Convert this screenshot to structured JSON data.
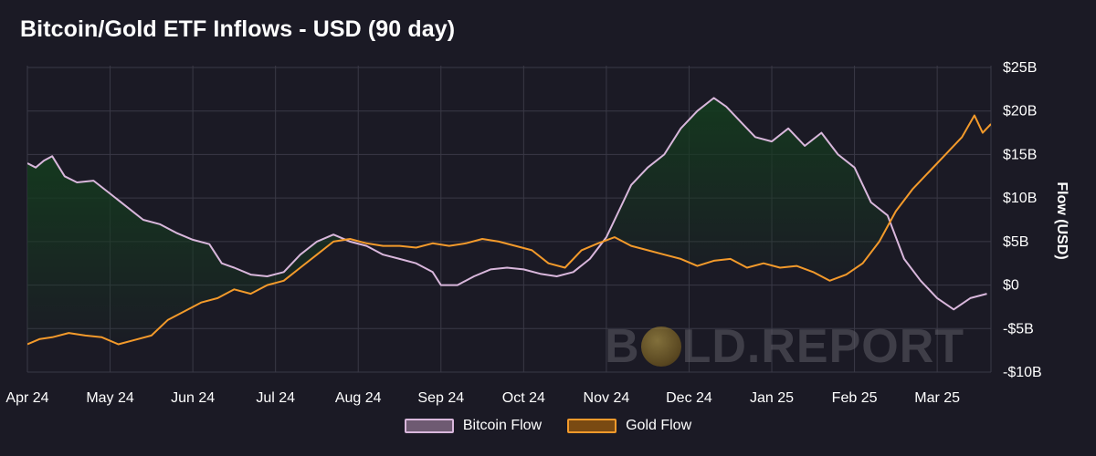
{
  "chart_data": {
    "type": "line",
    "title": "Bitcoin/Gold ETF Inflows - USD (90 day)",
    "ylabel": "Flow (USD)",
    "ylim": [
      -10,
      25
    ],
    "yticks": [
      25,
      20,
      15,
      10,
      5,
      0,
      -5,
      -10
    ],
    "ytick_labels": [
      "$25B",
      "$20B",
      "$15B",
      "$10B",
      "$5B",
      "$0",
      "-$5B",
      "-$10B"
    ],
    "xlim": [
      0,
      11.65
    ],
    "xticks": [
      0,
      1,
      2,
      3,
      4,
      5,
      6,
      7,
      8,
      9,
      10,
      11
    ],
    "xtick_labels": [
      "Apr 24",
      "May 24",
      "Jun 24",
      "Jul 24",
      "Aug 24",
      "Sep 24",
      "Oct 24",
      "Nov 24",
      "Dec 24",
      "Jan 25",
      "Feb 25",
      "Mar 25"
    ],
    "grid": true,
    "legend_position": "bottom-center",
    "series": [
      {
        "name": "Bitcoin Flow",
        "color": "#d9b7dc",
        "x": [
          0,
          0.1,
          0.2,
          0.3,
          0.45,
          0.6,
          0.8,
          1.0,
          1.2,
          1.4,
          1.6,
          1.8,
          2.0,
          2.2,
          2.35,
          2.5,
          2.7,
          2.9,
          3.1,
          3.3,
          3.5,
          3.7,
          3.9,
          4.1,
          4.3,
          4.5,
          4.7,
          4.9,
          5.0,
          5.2,
          5.4,
          5.6,
          5.8,
          6.0,
          6.2,
          6.4,
          6.6,
          6.8,
          7.0,
          7.15,
          7.3,
          7.5,
          7.7,
          7.9,
          8.1,
          8.3,
          8.45,
          8.6,
          8.8,
          9.0,
          9.2,
          9.4,
          9.6,
          9.8,
          10.0,
          10.2,
          10.4,
          10.6,
          10.8,
          11.0,
          11.2,
          11.4,
          11.6
        ],
        "values": [
          14.0,
          13.5,
          14.3,
          14.8,
          12.5,
          11.8,
          12.0,
          10.5,
          9.0,
          7.5,
          7.0,
          6.0,
          5.2,
          4.7,
          2.5,
          2.0,
          1.2,
          1.0,
          1.5,
          3.5,
          5.0,
          5.8,
          5.0,
          4.5,
          3.5,
          3.0,
          2.5,
          1.5,
          0.0,
          0.0,
          1.0,
          1.8,
          2.0,
          1.8,
          1.3,
          1.0,
          1.5,
          3.0,
          5.5,
          8.5,
          11.5,
          13.5,
          15.0,
          18.0,
          20.0,
          21.5,
          20.5,
          19.0,
          17.0,
          16.5,
          18.0,
          16.0,
          17.5,
          15.0,
          13.5,
          9.5,
          8.0,
          3.0,
          0.5,
          -1.5,
          -2.8,
          -1.5,
          -1.0
        ]
      },
      {
        "name": "Gold Flow",
        "color": "#f39a2b",
        "x": [
          0,
          0.15,
          0.3,
          0.5,
          0.7,
          0.9,
          1.1,
          1.3,
          1.5,
          1.7,
          1.9,
          2.1,
          2.3,
          2.5,
          2.7,
          2.9,
          3.1,
          3.3,
          3.5,
          3.7,
          3.9,
          4.1,
          4.3,
          4.5,
          4.7,
          4.9,
          5.1,
          5.3,
          5.5,
          5.7,
          5.9,
          6.1,
          6.3,
          6.5,
          6.7,
          6.9,
          7.1,
          7.3,
          7.5,
          7.7,
          7.9,
          8.1,
          8.3,
          8.5,
          8.7,
          8.9,
          9.1,
          9.3,
          9.5,
          9.7,
          9.9,
          10.1,
          10.3,
          10.5,
          10.7,
          10.9,
          11.1,
          11.3,
          11.45,
          11.55,
          11.65
        ],
        "values": [
          -6.8,
          -6.2,
          -6.0,
          -5.5,
          -5.8,
          -6.0,
          -6.8,
          -6.3,
          -5.8,
          -4.0,
          -3.0,
          -2.0,
          -1.5,
          -0.5,
          -1.0,
          0.0,
          0.5,
          2.0,
          3.5,
          5.0,
          5.3,
          4.8,
          4.5,
          4.5,
          4.3,
          4.8,
          4.5,
          4.8,
          5.3,
          5.0,
          4.5,
          4.0,
          2.5,
          2.0,
          4.0,
          4.8,
          5.5,
          4.5,
          4.0,
          3.5,
          3.0,
          2.2,
          2.8,
          3.0,
          2.0,
          2.5,
          2.0,
          2.2,
          1.5,
          0.5,
          1.2,
          2.5,
          5.0,
          8.5,
          11.0,
          13.0,
          15.0,
          17.0,
          19.5,
          17.5,
          18.5
        ]
      }
    ]
  },
  "watermark": {
    "text_left": "B",
    "text_right": "LD.REPORT",
    "icon": "gold-coin-icon"
  }
}
